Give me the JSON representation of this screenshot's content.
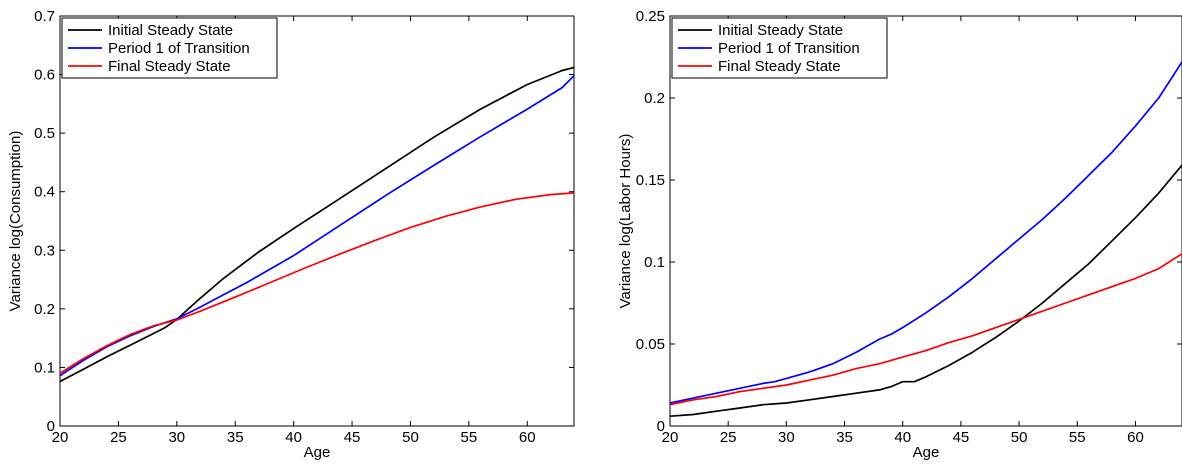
{
  "chart_data": [
    {
      "type": "line",
      "title": "",
      "xlabel": "Age",
      "ylabel": "Variance log(Consumption)",
      "xlim": [
        20,
        64
      ],
      "ylim": [
        0,
        0.7
      ],
      "xticks": [
        20,
        25,
        30,
        35,
        40,
        45,
        50,
        55,
        60
      ],
      "yticks": [
        0,
        0.1,
        0.2,
        0.3,
        0.4,
        0.5,
        0.6,
        0.7
      ],
      "xtick_labels": [
        "20",
        "25",
        "30",
        "35",
        "40",
        "45",
        "50",
        "55",
        "60"
      ],
      "ytick_labels": [
        "0",
        "0.1",
        "0.2",
        "0.3",
        "0.4",
        "0.5",
        "0.6",
        "0.7"
      ],
      "grid": false,
      "legend_position": "top-left",
      "series": [
        {
          "name": "Initial Steady State",
          "color": "#000000",
          "x": [
            20,
            22,
            24,
            26,
            28,
            29,
            30,
            32,
            34,
            37,
            40,
            44,
            48,
            52,
            56,
            60,
            63,
            64
          ],
          "y": [
            0.076,
            0.097,
            0.118,
            0.138,
            0.158,
            0.168,
            0.182,
            0.218,
            0.252,
            0.297,
            0.337,
            0.389,
            0.441,
            0.493,
            0.541,
            0.583,
            0.607,
            0.612
          ]
        },
        {
          "name": "Period 1 of Transition",
          "color": "#0000ff",
          "x": [
            20,
            22,
            24,
            26,
            28,
            30,
            32,
            34,
            36,
            38,
            40,
            44,
            48,
            52,
            56,
            60,
            63,
            64
          ],
          "y": [
            0.086,
            0.112,
            0.135,
            0.154,
            0.17,
            0.183,
            0.203,
            0.224,
            0.245,
            0.268,
            0.291,
            0.343,
            0.395,
            0.445,
            0.494,
            0.541,
            0.578,
            0.598
          ]
        },
        {
          "name": "Final Steady State",
          "color": "#ff0000",
          "x": [
            20,
            22,
            24,
            26,
            28,
            30,
            32,
            35,
            38,
            41,
            44,
            47,
            50,
            53,
            56,
            59,
            62,
            64
          ],
          "y": [
            0.09,
            0.115,
            0.137,
            0.156,
            0.171,
            0.181,
            0.196,
            0.22,
            0.245,
            0.27,
            0.294,
            0.317,
            0.339,
            0.358,
            0.374,
            0.387,
            0.395,
            0.398
          ]
        }
      ]
    },
    {
      "type": "line",
      "title": "",
      "xlabel": "Age",
      "ylabel": "Variance log(Labor Hours)",
      "xlim": [
        20,
        64
      ],
      "ylim": [
        0,
        0.25
      ],
      "xticks": [
        20,
        25,
        30,
        35,
        40,
        45,
        50,
        55,
        60
      ],
      "yticks": [
        0,
        0.05,
        0.1,
        0.15,
        0.2,
        0.25
      ],
      "xtick_labels": [
        "20",
        "25",
        "30",
        "35",
        "40",
        "45",
        "50",
        "55",
        "60"
      ],
      "ytick_labels": [
        "0",
        "0.05",
        "0.1",
        "0.15",
        "0.2",
        "0.25"
      ],
      "grid": false,
      "legend_position": "top-left",
      "series": [
        {
          "name": "Initial Steady State",
          "color": "#000000",
          "x": [
            20,
            22,
            24,
            26,
            28,
            30,
            32,
            34,
            36,
            38,
            39,
            40,
            41,
            42,
            44,
            46,
            48,
            50,
            52,
            54,
            56,
            58,
            60,
            62,
            64
          ],
          "y": [
            0.006,
            0.007,
            0.009,
            0.011,
            0.013,
            0.014,
            0.016,
            0.018,
            0.02,
            0.022,
            0.024,
            0.027,
            0.027,
            0.03,
            0.037,
            0.045,
            0.054,
            0.064,
            0.075,
            0.087,
            0.099,
            0.113,
            0.127,
            0.142,
            0.159
          ]
        },
        {
          "name": "Period 1 of Transition",
          "color": "#0000ff",
          "x": [
            20,
            22,
            24,
            26,
            28,
            29,
            30,
            32,
            34,
            36,
            38,
            39,
            40,
            42,
            44,
            46,
            48,
            50,
            52,
            54,
            56,
            58,
            60,
            62,
            64
          ],
          "y": [
            0.014,
            0.017,
            0.02,
            0.023,
            0.026,
            0.027,
            0.029,
            0.033,
            0.038,
            0.045,
            0.053,
            0.056,
            0.06,
            0.069,
            0.079,
            0.09,
            0.102,
            0.114,
            0.126,
            0.139,
            0.153,
            0.167,
            0.183,
            0.2,
            0.222
          ]
        },
        {
          "name": "Final Steady State",
          "color": "#ff0000",
          "x": [
            20,
            22,
            24,
            26,
            28,
            30,
            32,
            34,
            36,
            38,
            40,
            42,
            44,
            46,
            48,
            50,
            52,
            54,
            56,
            58,
            60,
            62,
            64
          ],
          "y": [
            0.013,
            0.016,
            0.018,
            0.021,
            0.023,
            0.025,
            0.028,
            0.031,
            0.035,
            0.038,
            0.042,
            0.046,
            0.051,
            0.055,
            0.06,
            0.065,
            0.07,
            0.075,
            0.08,
            0.085,
            0.09,
            0.096,
            0.105
          ]
        }
      ]
    }
  ]
}
